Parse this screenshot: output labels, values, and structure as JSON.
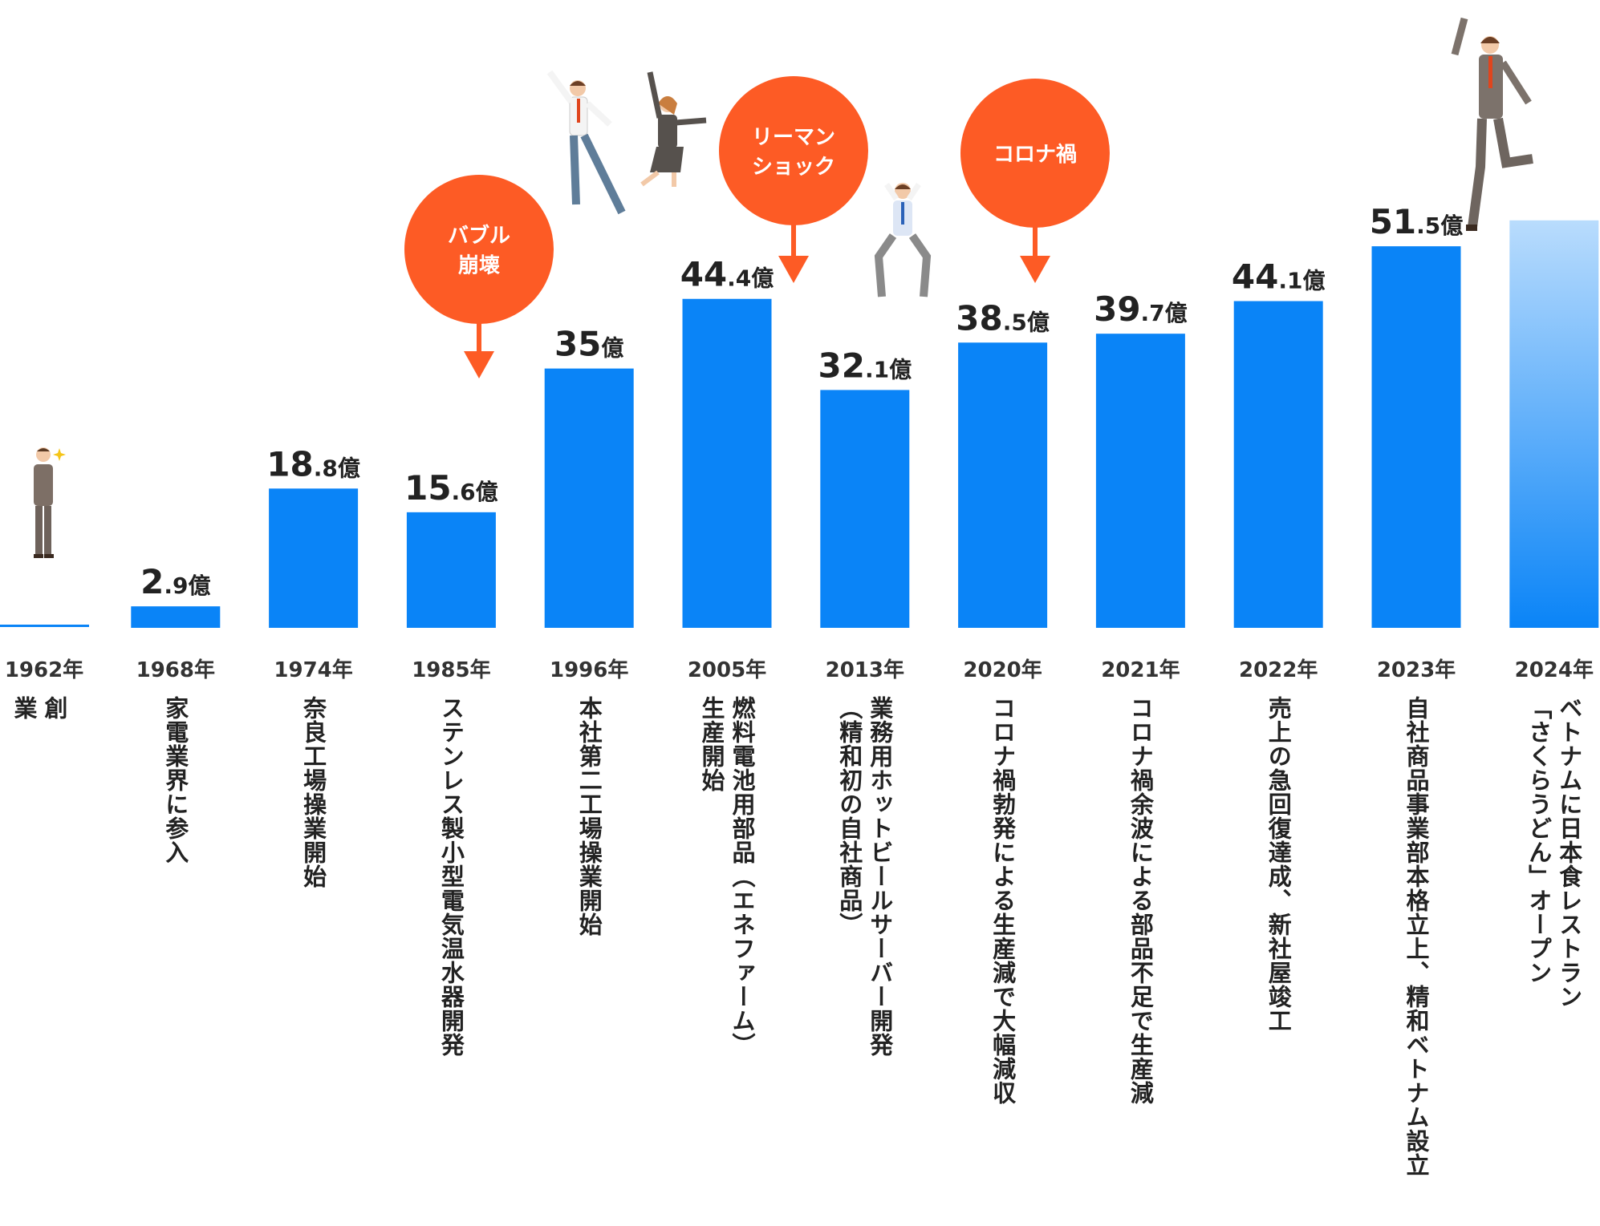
{
  "chart_data": {
    "type": "bar",
    "categories": [
      "1962年",
      "1968年",
      "1974年",
      "1985年",
      "1996年",
      "2005年",
      "2013年",
      "2020年",
      "2021年",
      "2022年",
      "2023年",
      "2024年"
    ],
    "values": [
      0,
      2.9,
      18.8,
      15.6,
      35,
      44.4,
      32.1,
      38.5,
      39.7,
      44.1,
      51.5,
      55
    ],
    "value_labels": [
      {
        "int": "",
        "dec": "",
        "unit": ""
      },
      {
        "int": "2",
        "dec": ".9",
        "unit": "億"
      },
      {
        "int": "18",
        "dec": ".8",
        "unit": "億"
      },
      {
        "int": "15",
        "dec": ".6",
        "unit": "億"
      },
      {
        "int": "35",
        "dec": "",
        "unit": "億"
      },
      {
        "int": "44",
        "dec": ".4",
        "unit": "億"
      },
      {
        "int": "32",
        "dec": ".1",
        "unit": "億"
      },
      {
        "int": "38",
        "dec": ".5",
        "unit": "億"
      },
      {
        "int": "39",
        "dec": ".7",
        "unit": "億"
      },
      {
        "int": "44",
        "dec": ".1",
        "unit": "億"
      },
      {
        "int": "51",
        "dec": ".5",
        "unit": "億"
      },
      {
        "int": "",
        "dec": "",
        "unit": ""
      }
    ],
    "ylim": [
      0,
      55
    ],
    "grid": false,
    "bar_color": "#0a84f7",
    "highlight_bar": {
      "index": 11,
      "style": "gradient",
      "colors": [
        "#0a84f7",
        "#b9dcfd"
      ]
    },
    "callouts": [
      {
        "text": [
          "バブル",
          "崩壊"
        ],
        "near": "1985年",
        "color": "#fd5b25"
      },
      {
        "text": [
          "リーマン",
          "ショック"
        ],
        "near": "2013年",
        "color": "#fd5b25"
      },
      {
        "text": [
          "コロナ禍"
        ],
        "near": "2020年",
        "color": "#fd5b25"
      }
    ]
  },
  "events": [
    "創\n業",
    "家電業界に参入",
    "奈良工場操業開始",
    "ステンレス製小型電気温水器開発",
    "本社第二工場操業開始",
    "燃料電池用部品（エネファーム）\n生産開始",
    "業務用ホットビールサーバー開発\n（精和初の自社商品）",
    "コロナ禍勃発による生産減で大幅減収",
    "コロナ禍余波による部品不足で生産減",
    "売上の急回復達成、新社屋竣工",
    "自社商品事業部本格立上、精和ベトナム設立",
    "ベトナムに日本食レストラン\n「さくらうどん」オープン"
  ],
  "illustrations": [
    "businessman-standing",
    "jumping-couple",
    "stressed-man",
    "jumping-businessman"
  ]
}
